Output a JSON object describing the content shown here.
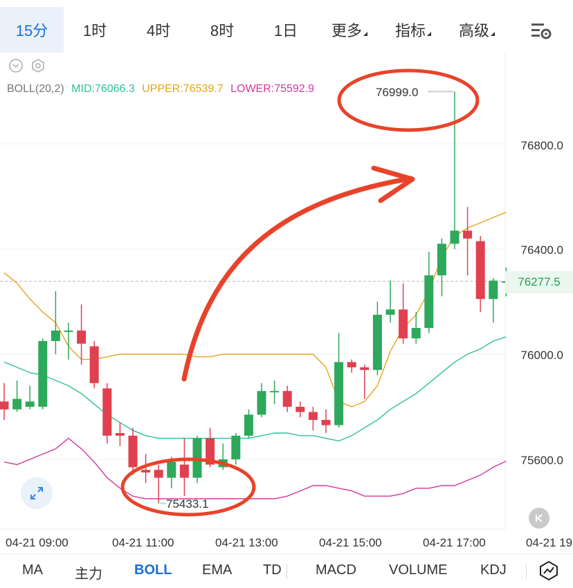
{
  "intervals": [
    {
      "label": "15分",
      "active": true
    },
    {
      "label": "1时",
      "active": false
    },
    {
      "label": "4时",
      "active": false
    },
    {
      "label": "8时",
      "active": false
    },
    {
      "label": "1日",
      "active": false
    },
    {
      "label": "更多",
      "active": false,
      "dropdown": true
    },
    {
      "label": "指标",
      "active": false,
      "dropdown": true
    },
    {
      "label": "高级",
      "active": false,
      "dropdown": true
    }
  ],
  "boll": {
    "name": "BOLL(20,2)",
    "mid": "MID:76066.3",
    "upper": "UPPER:76539.7",
    "lower": "LOWER:75592.9",
    "colors": {
      "mid": "#2cc19a",
      "upper": "#e8a21a",
      "lower": "#d6369a"
    }
  },
  "price_axis": [
    "76800.0",
    "76400.0",
    "76000.0",
    "75600.0"
  ],
  "current_price": "76277.5",
  "high_marker": "76999.0",
  "low_marker": "75433.1",
  "time_axis": [
    "04-21 09:00",
    "04-21 11:00",
    "04-21 13:00",
    "04-21 15:00",
    "04-21 17:00",
    "04-21 19"
  ],
  "indicators": [
    "MA",
    "主力",
    "BOLL",
    "EMA",
    "TD",
    "MACD",
    "VOLUME",
    "KDJ"
  ],
  "active_indicator": "BOLL",
  "colors": {
    "up": "#2ea85b",
    "down": "#e04050",
    "accent": "#1a6fd3",
    "annotation": "#e8432a"
  },
  "chart_data": {
    "type": "candlestick",
    "ylim": [
      75440,
      77040
    ],
    "candles": [
      {
        "o": 75820,
        "h": 75890,
        "l": 75750,
        "c": 75790
      },
      {
        "o": 75790,
        "h": 75900,
        "l": 75780,
        "c": 75830
      },
      {
        "o": 75800,
        "h": 75880,
        "l": 75790,
        "c": 75820
      },
      {
        "o": 75800,
        "h": 76060,
        "l": 75790,
        "c": 76050
      },
      {
        "o": 76050,
        "h": 76240,
        "l": 76000,
        "c": 76090
      },
      {
        "o": 76090,
        "h": 76120,
        "l": 75980,
        "c": 76090
      },
      {
        "o": 76090,
        "h": 76190,
        "l": 75960,
        "c": 76040
      },
      {
        "o": 76030,
        "h": 76050,
        "l": 75870,
        "c": 75890
      },
      {
        "o": 75870,
        "h": 75890,
        "l": 75660,
        "c": 75690
      },
      {
        "o": 75700,
        "h": 75740,
        "l": 75650,
        "c": 75690
      },
      {
        "o": 75690,
        "h": 75720,
        "l": 75540,
        "c": 75570
      },
      {
        "o": 75560,
        "h": 75620,
        "l": 75510,
        "c": 75550
      },
      {
        "o": 75560,
        "h": 75580,
        "l": 75433,
        "c": 75530
      },
      {
        "o": 75530,
        "h": 75610,
        "l": 75490,
        "c": 75590
      },
      {
        "o": 75580,
        "h": 75680,
        "l": 75460,
        "c": 75530
      },
      {
        "o": 75530,
        "h": 75690,
        "l": 75510,
        "c": 75680
      },
      {
        "o": 75680,
        "h": 75720,
        "l": 75570,
        "c": 75580
      },
      {
        "o": 75570,
        "h": 75660,
        "l": 75560,
        "c": 75600
      },
      {
        "o": 75600,
        "h": 75700,
        "l": 75580,
        "c": 75690
      },
      {
        "o": 75690,
        "h": 75790,
        "l": 75680,
        "c": 75770
      },
      {
        "o": 75770,
        "h": 75890,
        "l": 75760,
        "c": 75860
      },
      {
        "o": 75860,
        "h": 75900,
        "l": 75810,
        "c": 75860
      },
      {
        "o": 75860,
        "h": 75880,
        "l": 75780,
        "c": 75800
      },
      {
        "o": 75800,
        "h": 75820,
        "l": 75760,
        "c": 75780
      },
      {
        "o": 75780,
        "h": 75800,
        "l": 75710,
        "c": 75750
      },
      {
        "o": 75750,
        "h": 75790,
        "l": 75700,
        "c": 75730
      },
      {
        "o": 75730,
        "h": 76080,
        "l": 75720,
        "c": 75970
      },
      {
        "o": 75970,
        "h": 75980,
        "l": 75930,
        "c": 75950
      },
      {
        "o": 75950,
        "h": 75960,
        "l": 75830,
        "c": 75940
      },
      {
        "o": 75940,
        "h": 76200,
        "l": 75920,
        "c": 76150
      },
      {
        "o": 76150,
        "h": 76280,
        "l": 76120,
        "c": 76170
      },
      {
        "o": 76170,
        "h": 76270,
        "l": 76040,
        "c": 76060
      },
      {
        "o": 76060,
        "h": 76160,
        "l": 76040,
        "c": 76100
      },
      {
        "o": 76100,
        "h": 76390,
        "l": 76080,
        "c": 76300
      },
      {
        "o": 76300,
        "h": 76440,
        "l": 76220,
        "c": 76420
      },
      {
        "o": 76420,
        "h": 76999,
        "l": 76400,
        "c": 76470
      },
      {
        "o": 76470,
        "h": 76560,
        "l": 76300,
        "c": 76440
      },
      {
        "o": 76430,
        "h": 76450,
        "l": 76160,
        "c": 76210
      },
      {
        "o": 76210,
        "h": 76290,
        "l": 76120,
        "c": 76280
      },
      {
        "o": 76277,
        "h": 76330,
        "l": 76220,
        "c": 76277
      }
    ],
    "upper": [
      76310,
      76270,
      76210,
      76160,
      76120,
      76030,
      75980,
      75980,
      75990,
      76000,
      76000,
      76000,
      76000,
      76000,
      76000,
      75990,
      75990,
      76000,
      76000,
      76000,
      76000,
      76000,
      76000,
      76000,
      76000,
      75950,
      75820,
      75800,
      75820,
      75880,
      76010,
      76100,
      76150,
      76240,
      76370,
      76450,
      76480,
      76500,
      76520,
      76540
    ],
    "mid": [
      75970,
      75950,
      75930,
      75920,
      75900,
      75880,
      75850,
      75810,
      75770,
      75740,
      75710,
      75690,
      75680,
      75680,
      75680,
      75680,
      75680,
      75680,
      75680,
      75680,
      75690,
      75700,
      75700,
      75690,
      75690,
      75680,
      75670,
      75690,
      75720,
      75750,
      75790,
      75820,
      75850,
      75890,
      75930,
      75970,
      76000,
      76020,
      76050,
      76066
    ],
    "lower": [
      75590,
      75580,
      75600,
      75620,
      75640,
      75680,
      75640,
      75590,
      75530,
      75490,
      75460,
      75450,
      75450,
      75450,
      75450,
      75450,
      75450,
      75450,
      75450,
      75450,
      75450,
      75450,
      75460,
      75480,
      75500,
      75500,
      75490,
      75480,
      75460,
      75460,
      75460,
      75470,
      75490,
      75490,
      75500,
      75500,
      75520,
      75540,
      75570,
      75593
    ]
  }
}
